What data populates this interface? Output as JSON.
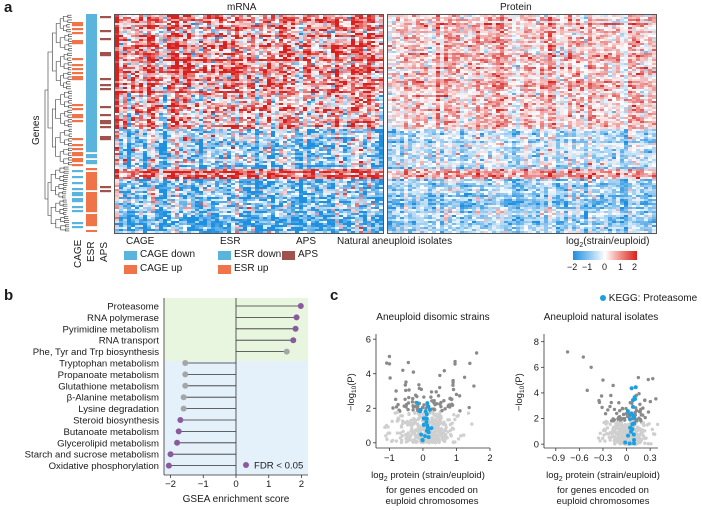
{
  "panel_a": {
    "label": "a",
    "mrna_title": "mRNA",
    "protein_title": "Protein",
    "genes_label": "Genes",
    "annotation_columns": [
      "CAGE",
      "ESR",
      "APS"
    ],
    "xlabel": "Natural aneuploid isolates",
    "legend_groups": [
      {
        "title": "CAGE",
        "items": [
          {
            "label": "CAGE down",
            "color": "#5ab4dc"
          },
          {
            "label": "CAGE up",
            "color": "#f0744a"
          }
        ]
      },
      {
        "title": "ESR",
        "items": [
          {
            "label": "ESR down",
            "color": "#5ab4dc"
          },
          {
            "label": "ESR up",
            "color": "#f0744a"
          }
        ]
      },
      {
        "title": "APS",
        "items": [
          {
            "label": "APS",
            "color": "#a0524d"
          }
        ]
      }
    ],
    "colorbar": {
      "title_pre": "log",
      "title_sub": "2",
      "title_post": "(strain/euploid)",
      "ticks": [
        "−2",
        "−1",
        "0",
        "1",
        "2"
      ]
    }
  },
  "panel_b": {
    "label": "b",
    "chart_data": {
      "type": "lollipop",
      "xlabel": "GSEA enrichment score",
      "xlim": [
        -2.2,
        2.2
      ],
      "xticks": [
        "−2",
        "−1",
        "0",
        "1",
        "2"
      ],
      "legend": "FDR < 0.05",
      "categories": [
        "Proteasome",
        "RNA polymerase",
        "Pyrimidine metabolism",
        "RNA transport",
        "Phe, Tyr and Trp biosynthesis",
        "Tryptophan metabolism",
        "Propanoate metabolism",
        "Glutathione metabolism",
        "β-Alanine metabolism",
        "Lysine degradation",
        "Steroid biosynthesis",
        "Butanoate metabolism",
        "Glycerolipid metabolism",
        "Starch and sucrose metabolism",
        "Oxidative phosphorylation"
      ],
      "values": [
        1.98,
        1.85,
        1.82,
        1.75,
        1.55,
        -1.55,
        -1.55,
        -1.55,
        -1.6,
        -1.6,
        -1.7,
        -1.75,
        -1.8,
        -2.0,
        -2.05
      ],
      "fdr_significant": [
        true,
        true,
        true,
        true,
        false,
        false,
        false,
        false,
        false,
        false,
        true,
        true,
        true,
        true,
        true
      ],
      "colors": {
        "significant": "#8b5a9c",
        "not_significant": "#a6a6a6",
        "positive_band": "#e8f6e0",
        "negative_band": "#e4f1fb"
      }
    }
  },
  "panel_c": {
    "label": "c",
    "legend": "KEGG: Proteasome",
    "legend_color": "#1a9fe0",
    "ylabel_pre": "−log",
    "ylabel_sub": "10",
    "ylabel_post": "(P)",
    "xlabel_line1_pre": "log",
    "xlabel_line1_sub": "2",
    "xlabel_line1_post": " protein (strain/euploid)",
    "xlabel_line2": "for genes encoded on",
    "xlabel_line3": "euploid chromosomes",
    "chart_data": [
      {
        "type": "scatter",
        "title": "Aneuploid disomic strains",
        "xlim": [
          -1.4,
          2.0
        ],
        "ylim": [
          -0.3,
          6.3
        ],
        "xticks": [
          -1,
          0,
          1,
          2
        ],
        "xtick_labels": [
          "−1",
          "0",
          "1",
          "2"
        ],
        "yticks": [
          0,
          2,
          4,
          6
        ]
      },
      {
        "type": "scatter",
        "title": "Aneuploid natural isolates",
        "xlim": [
          -1.05,
          0.4
        ],
        "ylim": [
          -0.3,
          8.6
        ],
        "xticks": [
          -0.9,
          -0.6,
          -0.3,
          0,
          0.3
        ],
        "xtick_labels": [
          "−0.9",
          "−0.6",
          "−0.3",
          "0",
          "0.3"
        ],
        "yticks": [
          0,
          2,
          4,
          6,
          8
        ]
      }
    ]
  }
}
